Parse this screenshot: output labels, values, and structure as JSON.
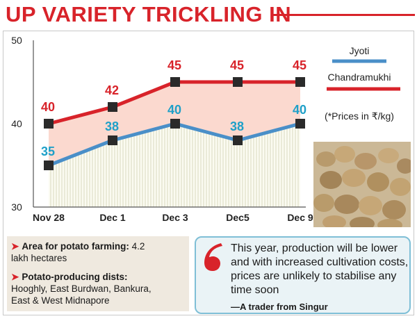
{
  "headline": "UP VARIETY TRICKLING IN",
  "bottom_left": {
    "area_label": "Area for potato farming:",
    "area_value": "4.2",
    "area_unit": "lakh hectares",
    "dists_label": "Potato-producing dists:",
    "dists_line1": "Hooghly, East Burdwan, Bankura,",
    "dists_line2": "East & West Midnapore"
  },
  "quote": {
    "text": "This year, production will be lower and with increased cultivation costs, prices are unlikely to stabilise any time soon",
    "source": "—A trader from Singur"
  },
  "chart_data": {
    "type": "line",
    "categories": [
      "Nov 28",
      "Dec 1",
      "Dec 3",
      "Dec5",
      "Dec 9"
    ],
    "series": [
      {
        "name": "Jyoti",
        "values": [
          35,
          38,
          40,
          38,
          40
        ],
        "color": "#4a8fc8",
        "label_color": "#1fa0c8"
      },
      {
        "name": "Chandramukhi",
        "values": [
          40,
          42,
          45,
          45,
          45
        ],
        "color": "#d8232a",
        "label_color": "#d8232a"
      }
    ],
    "ylim": [
      30,
      50
    ],
    "yticks": [
      "30",
      "40",
      "50"
    ],
    "note": "(*Prices in ₹/kg)",
    "grid": false
  }
}
